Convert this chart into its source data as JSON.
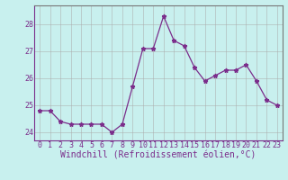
{
  "x": [
    0,
    1,
    2,
    3,
    4,
    5,
    6,
    7,
    8,
    9,
    10,
    11,
    12,
    13,
    14,
    15,
    16,
    17,
    18,
    19,
    20,
    21,
    22,
    23
  ],
  "y": [
    24.8,
    24.8,
    24.4,
    24.3,
    24.3,
    24.3,
    24.3,
    24.0,
    24.3,
    25.7,
    27.1,
    27.1,
    28.3,
    27.4,
    27.2,
    26.4,
    25.9,
    26.1,
    26.3,
    26.3,
    26.5,
    25.9,
    25.2,
    25.0
  ],
  "line_color": "#7b2d8b",
  "marker": "*",
  "marker_size": 3.5,
  "background_color": "#c8f0ee",
  "grid_color": "#aaaaaa",
  "xlabel": "Windchill (Refroidissement éolien,°C)",
  "ylim": [
    23.7,
    28.7
  ],
  "yticks": [
    24,
    25,
    26,
    27,
    28
  ],
  "xticks": [
    0,
    1,
    2,
    3,
    4,
    5,
    6,
    7,
    8,
    9,
    10,
    11,
    12,
    13,
    14,
    15,
    16,
    17,
    18,
    19,
    20,
    21,
    22,
    23
  ],
  "axis_color": "#7b2d8b",
  "tick_color": "#7b2d8b",
  "label_fontsize": 7,
  "tick_fontsize": 6
}
